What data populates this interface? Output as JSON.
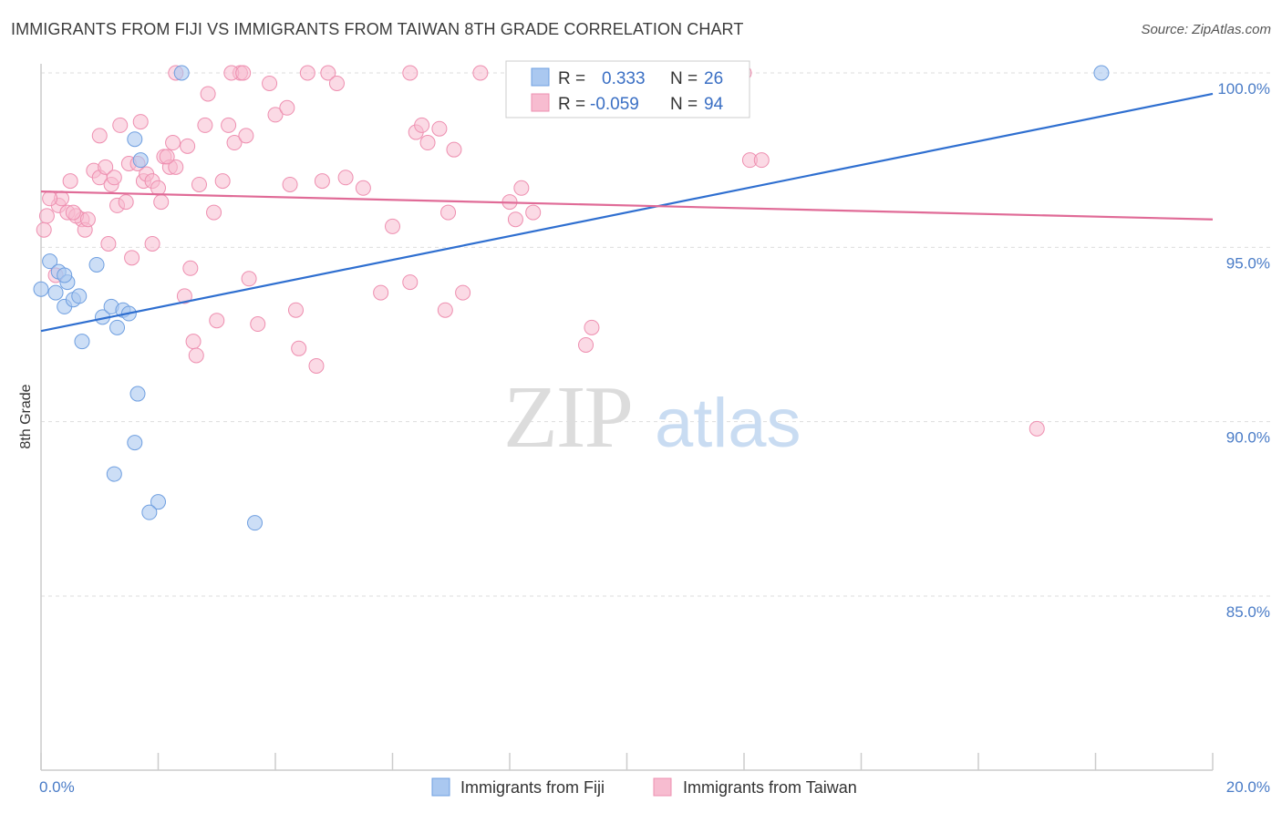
{
  "title": "IMMIGRANTS FROM FIJI VS IMMIGRANTS FROM TAIWAN 8TH GRADE CORRELATION CHART",
  "source": "Source: ZipAtlas.com",
  "watermark": {
    "zip": "ZIP",
    "atlas": "atlas"
  },
  "colors": {
    "fiji_fill": "#aac8f0",
    "fiji_stroke": "#6f9fe0",
    "fiji_line": "#2f6fd0",
    "taiwan_fill": "#f7bcd0",
    "taiwan_stroke": "#ee8fb0",
    "taiwan_line": "#e06b97",
    "axis_label": "#4a7cc7",
    "grid": "#dddddd"
  },
  "legend": {
    "rows": [
      {
        "r_label": "R =",
        "r_value": "0.333",
        "n_label": "N =",
        "n_value": "26"
      },
      {
        "r_label": "R =",
        "r_value": "-0.059",
        "n_label": "N =",
        "n_value": "94"
      }
    ]
  },
  "chart_data": {
    "type": "scatter",
    "title": "IMMIGRANTS FROM FIJI VS IMMIGRANTS FROM TAIWAN 8TH GRADE CORRELATION CHART",
    "xlabel": "",
    "ylabel": "8th Grade",
    "xlim": [
      0,
      20
    ],
    "ylim": [
      80.5,
      100.7
    ],
    "x_tick_labels": [
      "0.0%",
      "20.0%"
    ],
    "y_tick_labels": [
      "85.0%",
      "90.0%",
      "95.0%",
      "100.0%"
    ],
    "y_ticks": [
      85,
      90,
      95,
      100
    ],
    "legend_position": "top-center",
    "grid": true,
    "series": [
      {
        "name": "Immigrants from Fiji",
        "trend": {
          "x": [
            0,
            20
          ],
          "y": [
            92.6,
            99.4
          ]
        },
        "points": [
          [
            0.0,
            93.8
          ],
          [
            0.15,
            94.6
          ],
          [
            0.3,
            94.3
          ],
          [
            0.25,
            93.7
          ],
          [
            0.45,
            94.0
          ],
          [
            0.4,
            93.3
          ],
          [
            0.55,
            93.5
          ],
          [
            0.65,
            93.6
          ],
          [
            0.7,
            92.3
          ],
          [
            0.95,
            94.5
          ],
          [
            1.05,
            93.0
          ],
          [
            1.2,
            93.3
          ],
          [
            1.3,
            92.7
          ],
          [
            1.4,
            93.2
          ],
          [
            1.5,
            93.1
          ],
          [
            1.6,
            98.1
          ],
          [
            1.7,
            97.5
          ],
          [
            2.4,
            100.0
          ],
          [
            1.65,
            90.8
          ],
          [
            1.6,
            89.4
          ],
          [
            1.25,
            88.5
          ],
          [
            2.0,
            87.7
          ],
          [
            1.85,
            87.4
          ],
          [
            3.65,
            87.1
          ],
          [
            18.1,
            100.0
          ],
          [
            0.4,
            94.2
          ]
        ]
      },
      {
        "name": "Immigrants from Taiwan",
        "trend": {
          "x": [
            0,
            20
          ],
          "y": [
            96.6,
            95.8
          ]
        },
        "points": [
          [
            0.05,
            95.5
          ],
          [
            0.1,
            95.9
          ],
          [
            0.3,
            96.2
          ],
          [
            0.35,
            96.4
          ],
          [
            0.45,
            96.0
          ],
          [
            0.5,
            96.9
          ],
          [
            0.7,
            95.8
          ],
          [
            0.75,
            95.5
          ],
          [
            0.9,
            97.2
          ],
          [
            1.0,
            97.0
          ],
          [
            1.0,
            98.2
          ],
          [
            1.1,
            97.3
          ],
          [
            1.2,
            96.8
          ],
          [
            1.25,
            97.0
          ],
          [
            1.3,
            96.2
          ],
          [
            1.35,
            98.5
          ],
          [
            1.5,
            97.4
          ],
          [
            1.55,
            94.7
          ],
          [
            1.65,
            97.4
          ],
          [
            1.7,
            98.6
          ],
          [
            1.75,
            96.9
          ],
          [
            1.8,
            97.1
          ],
          [
            1.9,
            96.9
          ],
          [
            2.0,
            96.7
          ],
          [
            2.05,
            96.3
          ],
          [
            2.1,
            97.6
          ],
          [
            2.2,
            97.3
          ],
          [
            2.25,
            98.0
          ],
          [
            2.3,
            97.3
          ],
          [
            2.5,
            97.9
          ],
          [
            2.55,
            94.4
          ],
          [
            2.6,
            92.3
          ],
          [
            2.65,
            91.9
          ],
          [
            2.7,
            96.8
          ],
          [
            2.8,
            98.5
          ],
          [
            2.85,
            99.4
          ],
          [
            2.95,
            96.0
          ],
          [
            3.0,
            92.9
          ],
          [
            3.1,
            96.9
          ],
          [
            3.2,
            98.5
          ],
          [
            3.3,
            98.0
          ],
          [
            3.4,
            100.0
          ],
          [
            3.5,
            98.2
          ],
          [
            3.55,
            94.1
          ],
          [
            3.7,
            92.8
          ],
          [
            3.9,
            99.7
          ],
          [
            4.0,
            98.8
          ],
          [
            4.2,
            99.0
          ],
          [
            4.25,
            96.8
          ],
          [
            4.35,
            93.2
          ],
          [
            4.4,
            92.1
          ],
          [
            4.55,
            100.0
          ],
          [
            4.7,
            91.6
          ],
          [
            4.8,
            96.9
          ],
          [
            4.9,
            100.0
          ],
          [
            5.05,
            99.7
          ],
          [
            5.5,
            96.7
          ],
          [
            5.8,
            93.7
          ],
          [
            6.0,
            95.6
          ],
          [
            6.3,
            94.0
          ],
          [
            6.3,
            100.0
          ],
          [
            6.4,
            98.3
          ],
          [
            6.5,
            98.5
          ],
          [
            6.6,
            98.0
          ],
          [
            6.8,
            98.4
          ],
          [
            6.9,
            93.2
          ],
          [
            6.95,
            96.0
          ],
          [
            7.05,
            97.8
          ],
          [
            7.2,
            93.7
          ],
          [
            7.5,
            100.0
          ],
          [
            8.0,
            96.3
          ],
          [
            8.1,
            95.8
          ],
          [
            8.2,
            96.7
          ],
          [
            8.4,
            96.0
          ],
          [
            9.3,
            92.2
          ],
          [
            9.4,
            92.7
          ],
          [
            12.0,
            100.0
          ],
          [
            12.1,
            97.5
          ],
          [
            12.3,
            97.5
          ],
          [
            17.0,
            89.8
          ],
          [
            2.45,
            93.6
          ],
          [
            1.15,
            95.1
          ],
          [
            0.6,
            95.9
          ],
          [
            1.9,
            95.1
          ],
          [
            0.15,
            96.4
          ],
          [
            2.3,
            100.0
          ],
          [
            3.25,
            100.0
          ],
          [
            3.45,
            100.0
          ],
          [
            5.2,
            97.0
          ],
          [
            0.25,
            94.2
          ],
          [
            0.55,
            96.0
          ],
          [
            0.8,
            95.8
          ],
          [
            1.45,
            96.3
          ],
          [
            2.15,
            97.6
          ]
        ]
      }
    ]
  },
  "bottom_legend": [
    "Immigrants from Fiji",
    "Immigrants from Taiwan"
  ]
}
